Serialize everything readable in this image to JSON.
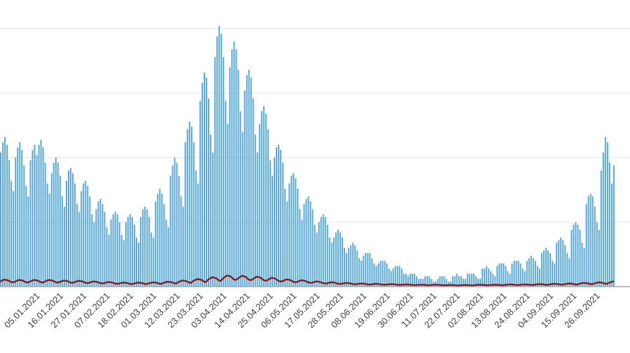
{
  "chart_data": {
    "type": "bar",
    "title": "",
    "xlabel": "",
    "ylabel": "",
    "ylim": [
      0,
      104
    ],
    "gridlines": [
      25,
      50,
      75,
      100
    ],
    "grid_on": true,
    "legend": "none",
    "colors": {
      "bars": "#58a9d8",
      "deaths_line": "#8b1a1a",
      "grid": "#e8e8e8",
      "baseline": "#a6a6a6",
      "tick_text": "#3c3c3c",
      "background": "#ffffff"
    },
    "x_ticks": {
      "day_indices": [
        17,
        28,
        39,
        50,
        61,
        72,
        83,
        94,
        105,
        116,
        127,
        138,
        149,
        160,
        171,
        182,
        193,
        204,
        215,
        226,
        237,
        248,
        259,
        270,
        281
      ],
      "labels": [
        "05.01.2021",
        "16.01.2021",
        "27.01.2021",
        "07.02.2021",
        "18.02.2021",
        "01.03.2021",
        "12.03.2021",
        "23.03.2021",
        "03.04.2021",
        "14.04.2021",
        "25.04.2021",
        "06.05.2021",
        "17.05.2021",
        "28.05.2021",
        "08.06.2021",
        "19.06.2021",
        "30.06.2021",
        "11.07.2021",
        "22.07.2021",
        "02.08.2021",
        "13.08.2021",
        "24.08.2021",
        "04.09.2021",
        "15.09.2021",
        "26.09.2021"
      ]
    },
    "series": [
      {
        "name": "daily-cases-bars",
        "type": "bar",
        "values": [
          52,
          56,
          58,
          55,
          49,
          41,
          37,
          50,
          54,
          56,
          53,
          47,
          39,
          35,
          49,
          53,
          55,
          51,
          55,
          57,
          54,
          48,
          40,
          36,
          44,
          48,
          50,
          48,
          43,
          35,
          31,
          41,
          45,
          46,
          44,
          40,
          32,
          29,
          37,
          40,
          41,
          39,
          35,
          28,
          25,
          30,
          33,
          34,
          32,
          29,
          23,
          20,
          26,
          28,
          29,
          28,
          25,
          20,
          18,
          25,
          27,
          28,
          27,
          24,
          19,
          17,
          27,
          30,
          31,
          30,
          27,
          21,
          19,
          33,
          36,
          38,
          36,
          32,
          26,
          23,
          43,
          47,
          50,
          48,
          43,
          35,
          31,
          56,
          61,
          64,
          62,
          56,
          45,
          40,
          72,
          79,
          83,
          81,
          73,
          59,
          52,
          89,
          97,
          101,
          98,
          89,
          72,
          63,
          85,
          92,
          95,
          92,
          84,
          68,
          60,
          76,
          82,
          84,
          81,
          73,
          59,
          52,
          63,
          68,
          70,
          67,
          61,
          49,
          43,
          50,
          54,
          55,
          53,
          48,
          38,
          33,
          40,
          43,
          44,
          42,
          38,
          30,
          26,
          32,
          34,
          35,
          33,
          30,
          24,
          21,
          25,
          27,
          28,
          27,
          24,
          19,
          17,
          19,
          21,
          22,
          21,
          19,
          15,
          13,
          15,
          16,
          17,
          16,
          14,
          11,
          10,
          12,
          13,
          13,
          13,
          11,
          9,
          8,
          9,
          10,
          10,
          10,
          9,
          7,
          6,
          7,
          8,
          8,
          8,
          7,
          5,
          5,
          4,
          5,
          5,
          5,
          4,
          3,
          3,
          3,
          4,
          4,
          4,
          3,
          2,
          2,
          3,
          4,
          4,
          4,
          3,
          2,
          2,
          4,
          4,
          5,
          4,
          4,
          3,
          3,
          5,
          5,
          5,
          5,
          4,
          3,
          3,
          7,
          7,
          8,
          7,
          6,
          5,
          4,
          8,
          9,
          9,
          9,
          8,
          6,
          5,
          9,
          10,
          10,
          10,
          9,
          7,
          6,
          10,
          11,
          12,
          11,
          10,
          8,
          7,
          13,
          14,
          15,
          14,
          13,
          10,
          9,
          17,
          18,
          19,
          18,
          16,
          13,
          11,
          22,
          24,
          25,
          24,
          22,
          17,
          15,
          32,
          35,
          36,
          35,
          31,
          25,
          22,
          45,
          52,
          58,
          56,
          48,
          40,
          47
        ]
      },
      {
        "name": "daily-deaths-line",
        "type": "line",
        "values_weekly": [
          2.1,
          2.0,
          2.0,
          2.0,
          1.8,
          1.7,
          1.5,
          1.3,
          1.1,
          1.1,
          1.2,
          1.4,
          1.8,
          2.3,
          2.9,
          3.5,
          3.4,
          3.1,
          2.7,
          2.2,
          1.9,
          1.5,
          1.2,
          1.0,
          0.8,
          0.7,
          0.6,
          0.5,
          0.4,
          0.4,
          0.3,
          0.3,
          0.4,
          0.4,
          0.5,
          0.5,
          0.6,
          0.7,
          0.8,
          1.0,
          1.2,
          1.5
        ]
      }
    ]
  }
}
